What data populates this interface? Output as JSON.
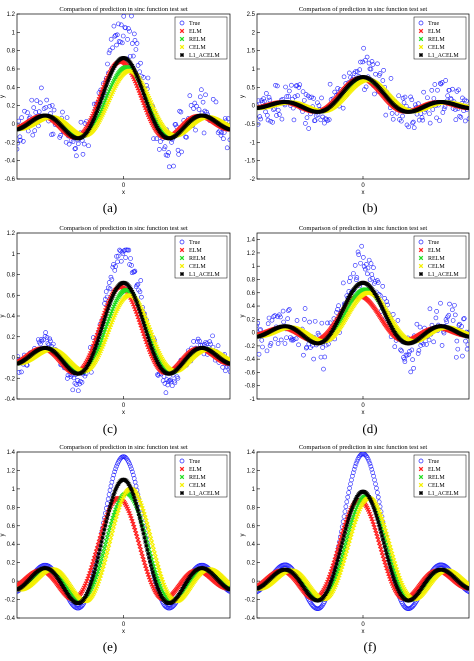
{
  "colors": {
    "True": "#1f1fff",
    "ELM": "#ff2020",
    "RELM": "#22dd22",
    "CELM": "#f5f000",
    "L1_ACELM": "#000000"
  },
  "legend_entries": [
    "True",
    "ELM",
    "RELM",
    "CELM",
    "L1_ACELM"
  ],
  "chart_data": [
    {
      "id": "a",
      "label": "(a)",
      "type": "scatter",
      "title": "Comparison of prediction in sinc function test set",
      "xlabel": "x",
      "ylabel": "y",
      "ylim": [
        -0.6,
        1.2
      ],
      "yticks": [
        "-0.6",
        "-0.4",
        "-0.2",
        "0",
        "0.2",
        "0.4",
        "0.6",
        "0.8",
        "1",
        "1.2"
      ],
      "xticks": [
        "0"
      ],
      "show_legend": true,
      "series": [
        {
          "name": "True",
          "noise": 0.2
        },
        {
          "name": "ELM",
          "peak": 0.68,
          "shift": 0.05
        },
        {
          "name": "RELM",
          "peak": 0.62,
          "shift": -0.05
        },
        {
          "name": "CELM",
          "peak": 0.58,
          "shift": -0.1
        },
        {
          "name": "L1_ACELM",
          "peak": 0.72,
          "shift": 0
        }
      ]
    },
    {
      "id": "b",
      "label": "(b)",
      "type": "scatter",
      "title": "Comparison of prediction in sinc function test set",
      "xlabel": "x",
      "ylabel": "y",
      "ylim": [
        -2,
        2.5
      ],
      "yticks": [
        "-2",
        "-1.5",
        "-1",
        "-0.5",
        "0",
        "0.5",
        "1",
        "1.5",
        "2",
        "2.5"
      ],
      "xticks": [
        "0"
      ],
      "show_legend": true,
      "series": [
        {
          "name": "True",
          "noise": 0.55
        },
        {
          "name": "ELM",
          "peak": 0.75,
          "shift": 0.04
        },
        {
          "name": "RELM",
          "peak": 0.72,
          "shift": -0.04
        },
        {
          "name": "CELM",
          "peak": 0.7,
          "shift": -0.08
        },
        {
          "name": "L1_ACELM",
          "peak": 0.78,
          "shift": 0
        }
      ]
    },
    {
      "id": "c",
      "label": "(c)",
      "type": "scatter",
      "title": "Comparison of prediction in sinc function test set",
      "xlabel": "x",
      "ylabel": "y",
      "ylim": [
        -0.4,
        1.2
      ],
      "yticks": [
        "-0.4",
        "-0.2",
        "0",
        "0.2",
        "0.4",
        "0.6",
        "0.8",
        "1",
        "1.2"
      ],
      "xticks": [
        "0"
      ],
      "show_legend": true,
      "series": [
        {
          "name": "True",
          "noise": 0.1
        },
        {
          "name": "ELM",
          "peak": 0.68,
          "shift": 0.05
        },
        {
          "name": "RELM",
          "peak": 0.65,
          "shift": -0.05
        },
        {
          "name": "CELM",
          "peak": 0.6,
          "shift": -0.1
        },
        {
          "name": "L1_ACELM",
          "peak": 0.72,
          "shift": 0
        }
      ]
    },
    {
      "id": "d",
      "label": "(d)",
      "type": "scatter",
      "title": "Comparison of prediction in sinc function test set",
      "xlabel": "x",
      "ylabel": "y",
      "ylim": [
        -1,
        1.5
      ],
      "yticks": [
        "-1",
        "-0.8",
        "-0.6",
        "-0.4",
        "-0.2",
        "0",
        "0.2",
        "0.4",
        "0.6",
        "0.8",
        "1",
        "1.2",
        "1.4"
      ],
      "xticks": [
        "0"
      ],
      "show_legend": true,
      "series": [
        {
          "name": "True",
          "noise": 0.3
        },
        {
          "name": "ELM",
          "peak": 0.55,
          "shift": 0.06
        },
        {
          "name": "RELM",
          "peak": 0.65,
          "shift": -0.04
        },
        {
          "name": "CELM",
          "peak": 0.6,
          "shift": -0.09
        },
        {
          "name": "L1_ACELM",
          "peak": 0.75,
          "shift": 0
        }
      ]
    },
    {
      "id": "e",
      "label": "(e)",
      "type": "scatter",
      "title": "Comparison of prediction in sinc function test set",
      "xlabel": "x",
      "ylabel": "y",
      "ylim": [
        -0.4,
        1.4
      ],
      "yticks": [
        "-0.4",
        "-0.2",
        "0",
        "0.2",
        "0.4",
        "0.6",
        "0.8",
        "1",
        "1.2",
        "1.4"
      ],
      "xticks": [
        "0"
      ],
      "show_legend": true,
      "series": [
        {
          "name": "True",
          "noise": 0.0,
          "peak": 1.35
        },
        {
          "name": "ELM",
          "peak": 0.9,
          "shift": 0.08
        },
        {
          "name": "RELM",
          "peak": 0.95,
          "shift": -0.05
        },
        {
          "name": "CELM",
          "peak": 1.0,
          "shift": -0.12
        },
        {
          "name": "L1_ACELM",
          "peak": 1.1,
          "shift": 0
        }
      ]
    },
    {
      "id": "f",
      "label": "(f)",
      "type": "scatter",
      "title": "Comparison of prediction in sinc function test set",
      "xlabel": "x",
      "ylabel": "y",
      "ylim": [
        -0.4,
        1.4
      ],
      "yticks": [
        "-0.4",
        "-0.2",
        "0",
        "0.2",
        "0.4",
        "0.6",
        "0.8",
        "1",
        "1.2",
        "1.4"
      ],
      "xticks": [
        "0"
      ],
      "show_legend": true,
      "series": [
        {
          "name": "True",
          "noise": 0.0,
          "peak": 1.38
        },
        {
          "name": "ELM",
          "peak": 0.88,
          "shift": 0.06
        },
        {
          "name": "RELM",
          "peak": 0.92,
          "shift": -0.05
        },
        {
          "name": "CELM",
          "peak": 0.9,
          "shift": -0.1
        },
        {
          "name": "L1_ACELM",
          "peak": 0.97,
          "shift": 0
        }
      ]
    }
  ]
}
